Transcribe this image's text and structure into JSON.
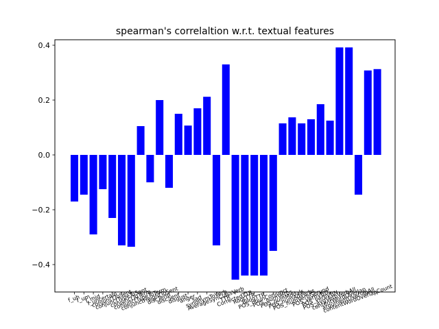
{
  "chart_data": {
    "type": "bar",
    "title": "spearman's correlaltion w.r.t. textual features",
    "xlabel": "",
    "ylabel": "",
    "ylim": [
      -0.5,
      0.42
    ],
    "yticks": [
      -0.4,
      -0.2,
      0.0,
      0.2,
      0.4
    ],
    "ytick_labels": [
      "−0.4",
      "−0.2",
      "0.0",
      "0.2",
      "0.4"
    ],
    "grid": false,
    "bar_color": "#0000ff",
    "categories": [
      "f_uh",
      "f_um",
      "f_mid",
      "f_uncertain",
      "conjunctToSent",
      "conjunctTypeToSent",
      "conjunctToTerm",
      "conjunctTypeToTerm",
      "conjunctHeightToSent",
      "discTerm",
      "discSent",
      "disgust",
      "anger",
      "sad",
      "synonymToVerb",
      "AverageSynClassVerb",
      "TTR",
      "CorrectedTTR",
      "RootTTR",
      "BilogTTR",
      "POS_nounConjunct",
      "POS_numVerbs",
      "POS_numModals",
      "POS_numAdverbs",
      "POS_numVerbGerund",
      "POS_verbVBD",
      "POS_verbVBN",
      "POS_avgVerbVerbAll",
      "contentWordOverlap",
      "argumentOverlapAll",
      "contentWordOverlapCount"
    ],
    "values": [
      -0.17,
      -0.145,
      -0.29,
      -0.125,
      -0.23,
      -0.33,
      -0.335,
      0.105,
      -0.1,
      0.2,
      -0.12,
      0.15,
      0.107,
      0.17,
      0.212,
      -0.33,
      0.33,
      -0.455,
      -0.44,
      -0.44,
      -0.44,
      -0.35,
      0.115,
      0.137,
      0.115,
      0.13,
      0.185,
      0.125,
      0.392,
      0.392,
      -0.145
    ],
    "extra_values": [
      0.308,
      0.313
    ]
  }
}
